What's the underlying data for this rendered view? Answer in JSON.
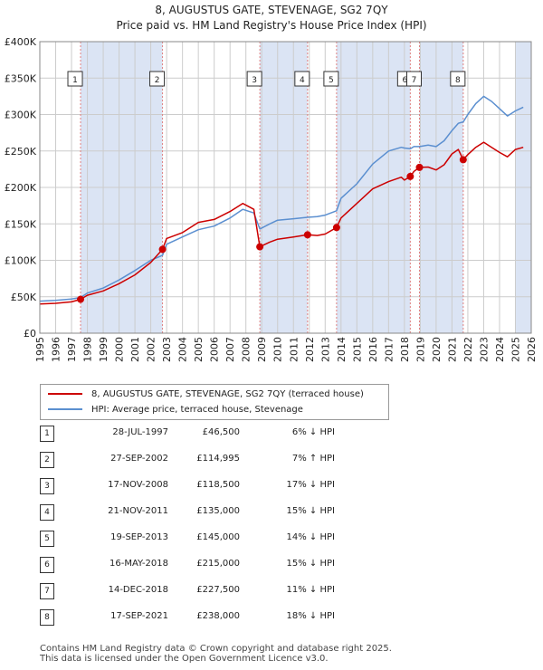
{
  "title": "8, AUGUSTUS GATE, STEVENAGE, SG2 7QY",
  "subtitle": "Price paid vs. HM Land Registry's House Price Index (HPI)",
  "colors": {
    "property": "#cc0000",
    "hpi": "#5b8fd0",
    "shade": "#dbe4f4",
    "grid": "#cccccc",
    "marker_line": "#e08080"
  },
  "chart_data": {
    "type": "line",
    "title": "8, AUGUSTUS GATE, STEVENAGE, SG2 7QY",
    "subtitle": "Price paid vs. HM Land Registry's House Price Index (HPI)",
    "xlabel": "",
    "ylabel": "",
    "xlim": [
      1995,
      2026
    ],
    "ylim": [
      0,
      400000
    ],
    "x_ticks": [
      1995,
      1996,
      1997,
      1998,
      1999,
      2000,
      2001,
      2002,
      2003,
      2004,
      2005,
      2006,
      2007,
      2008,
      2009,
      2010,
      2011,
      2012,
      2013,
      2014,
      2015,
      2016,
      2017,
      2018,
      2019,
      2020,
      2021,
      2022,
      2023,
      2024,
      2025,
      2026
    ],
    "x_tick_labels": [
      "1995",
      "1996",
      "1997",
      "1998",
      "1999",
      "2000",
      "2001",
      "2002",
      "2003",
      "2004",
      "2005",
      "2006",
      "2007",
      "2008",
      "2009",
      "2010",
      "2011",
      "2012",
      "2013",
      "2014",
      "2015",
      "2016",
      "2017",
      "2018",
      "2019",
      "2020",
      "2021",
      "2022",
      "2023",
      "2024",
      "2025",
      "2026"
    ],
    "y_ticks": [
      0,
      50000,
      100000,
      150000,
      200000,
      250000,
      300000,
      350000,
      400000
    ],
    "y_tick_labels": [
      "£0",
      "£50K",
      "£100K",
      "£150K",
      "£200K",
      "£250K",
      "£300K",
      "£350K",
      "£400K"
    ],
    "grid": true,
    "series": [
      {
        "name": "8, AUGUSTUS GATE, STEVENAGE, SG2 7QY (terraced house)",
        "color": "#cc0000",
        "x": [
          1995.0,
          1996.0,
          1997.0,
          1997.57,
          1998.0,
          1999.0,
          2000.0,
          2001.0,
          2002.0,
          2002.74,
          2003.0,
          2004.0,
          2005.0,
          2006.0,
          2007.0,
          2007.8,
          2008.5,
          2008.88,
          2009.5,
          2010.0,
          2011.0,
          2011.89,
          2012.5,
          2013.0,
          2013.72,
          2014.0,
          2015.0,
          2016.0,
          2017.0,
          2017.8,
          2018.0,
          2018.37,
          2018.6,
          2018.95,
          2019.5,
          2020.0,
          2020.5,
          2021.0,
          2021.4,
          2021.71,
          2022.0,
          2022.5,
          2023.0,
          2023.5,
          2024.0,
          2024.5,
          2025.0,
          2025.5
        ],
        "values": [
          40000,
          41000,
          43000,
          46500,
          52000,
          58000,
          68000,
          80000,
          97000,
          114995,
          130000,
          138000,
          152000,
          156000,
          167000,
          178000,
          170000,
          118500,
          125000,
          129000,
          132000,
          135000,
          134000,
          136000,
          145000,
          158000,
          178000,
          198000,
          208000,
          214000,
          210000,
          215000,
          222000,
          227500,
          228000,
          224000,
          231000,
          246000,
          252000,
          238000,
          245000,
          255000,
          262000,
          255000,
          248000,
          242000,
          252000,
          255000
        ]
      },
      {
        "name": "HPI: Average price, terraced house, Stevenage",
        "color": "#5b8fd0",
        "x": [
          1995.0,
          1996.0,
          1997.0,
          1997.57,
          1998.0,
          1999.0,
          2000.0,
          2001.0,
          2002.0,
          2002.74,
          2003.0,
          2004.0,
          2005.0,
          2006.0,
          2007.0,
          2007.8,
          2008.5,
          2008.88,
          2009.5,
          2010.0,
          2011.0,
          2011.89,
          2012.5,
          2013.0,
          2013.72,
          2014.0,
          2015.0,
          2016.0,
          2017.0,
          2017.8,
          2018.0,
          2018.37,
          2018.6,
          2018.95,
          2019.5,
          2020.0,
          2020.5,
          2021.0,
          2021.4,
          2021.71,
          2022.0,
          2022.5,
          2023.0,
          2023.5,
          2024.0,
          2024.5,
          2025.0,
          2025.5
        ],
        "values": [
          44000,
          45000,
          47000,
          49000,
          55000,
          62000,
          73000,
          86000,
          100000,
          107000,
          122000,
          132000,
          142000,
          147000,
          158000,
          170000,
          165000,
          143000,
          150000,
          155000,
          157000,
          159000,
          160000,
          162000,
          168000,
          185000,
          205000,
          232000,
          250000,
          255000,
          254000,
          253000,
          256000,
          256000,
          258000,
          256000,
          264000,
          278000,
          288000,
          290000,
          300000,
          315000,
          325000,
          318000,
          308000,
          298000,
          305000,
          310000
        ]
      }
    ],
    "transactions": [
      {
        "n": "1",
        "x": 1997.57,
        "value": 46500
      },
      {
        "n": "2",
        "x": 2002.74,
        "value": 114995
      },
      {
        "n": "3",
        "x": 2008.88,
        "value": 118500
      },
      {
        "n": "4",
        "x": 2011.89,
        "value": 135000
      },
      {
        "n": "5",
        "x": 2013.72,
        "value": 145000
      },
      {
        "n": "6",
        "x": 2018.37,
        "value": 215000
      },
      {
        "n": "7",
        "x": 2018.95,
        "value": 227500
      },
      {
        "n": "8",
        "x": 2021.71,
        "value": 238000
      }
    ],
    "shaded_periods": [
      [
        1997.57,
        2002.74
      ],
      [
        2008.88,
        2011.89
      ],
      [
        2013.72,
        2018.37
      ],
      [
        2018.95,
        2021.71
      ],
      [
        2025.0,
        2026.0
      ]
    ]
  },
  "legend": {
    "property_label": "8, AUGUSTUS GATE, STEVENAGE, SG2 7QY (terraced house)",
    "hpi_label": "HPI: Average price, terraced house, Stevenage"
  },
  "table": [
    {
      "n": "1",
      "date": "28-JUL-1997",
      "price": "£46,500",
      "hpi": "6% ↓ HPI"
    },
    {
      "n": "2",
      "date": "27-SEP-2002",
      "price": "£114,995",
      "hpi": "7% ↑ HPI"
    },
    {
      "n": "3",
      "date": "17-NOV-2008",
      "price": "£118,500",
      "hpi": "17% ↓ HPI"
    },
    {
      "n": "4",
      "date": "21-NOV-2011",
      "price": "£135,000",
      "hpi": "15% ↓ HPI"
    },
    {
      "n": "5",
      "date": "19-SEP-2013",
      "price": "£145,000",
      "hpi": "14% ↓ HPI"
    },
    {
      "n": "6",
      "date": "16-MAY-2018",
      "price": "£215,000",
      "hpi": "15% ↓ HPI"
    },
    {
      "n": "7",
      "date": "14-DEC-2018",
      "price": "£227,500",
      "hpi": "11% ↓ HPI"
    },
    {
      "n": "8",
      "date": "17-SEP-2021",
      "price": "£238,000",
      "hpi": "18% ↓ HPI"
    }
  ],
  "footer": {
    "line1": "Contains HM Land Registry data © Crown copyright and database right 2025.",
    "line2": "This data is licensed under the Open Government Licence v3.0."
  }
}
